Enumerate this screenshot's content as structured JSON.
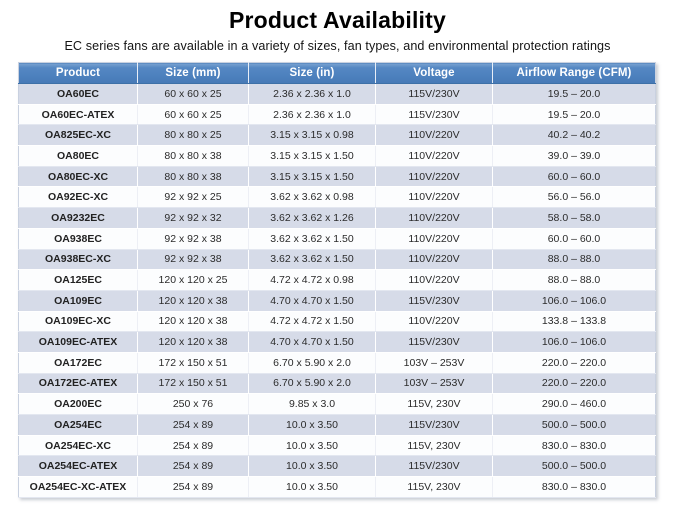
{
  "slide": {
    "title": "Product Availability",
    "subtitle": "EC series fans are available in a variety of sizes, fan types, and environmental protection ratings"
  },
  "table": {
    "headers": [
      "Product",
      "Size (mm)",
      "Size (in)",
      "Voltage",
      "Airflow Range (CFM)"
    ],
    "column_keys": [
      "product",
      "size_mm",
      "size_in",
      "voltage",
      "airflow_range_cfm"
    ],
    "rows": [
      [
        "OA60EC",
        "60 x 60 x 25",
        "2.36 x 2.36 x 1.0",
        "115V/230V",
        "19.5 – 20.0"
      ],
      [
        "OA60EC-ATEX",
        "60 x 60 x 25",
        "2.36 x 2.36 x 1.0",
        "115V/230V",
        "19.5 – 20.0"
      ],
      [
        "OA825EC-XC",
        "80 x 80 x 25",
        "3.15 x 3.15 x 0.98",
        "110V/220V",
        "40.2 – 40.2"
      ],
      [
        "OA80EC",
        "80 x 80 x 38",
        "3.15 x 3.15 x 1.50",
        "110V/220V",
        "39.0 – 39.0"
      ],
      [
        "OA80EC-XC",
        "80 x 80 x 38",
        "3.15 x 3.15 x 1.50",
        "110V/220V",
        "60.0 – 60.0"
      ],
      [
        "OA92EC-XC",
        "92 x 92 x 25",
        "3.62 x 3.62 x 0.98",
        "110V/220V",
        "56.0 – 56.0"
      ],
      [
        "OA9232EC",
        "92 x 92 x 32",
        "3.62 x 3.62 x 1.26",
        "110V/220V",
        "58.0 – 58.0"
      ],
      [
        "OA938EC",
        "92 x 92 x 38",
        "3.62 x 3.62 x 1.50",
        "110V/220V",
        "60.0 – 60.0"
      ],
      [
        "OA938EC-XC",
        "92 x 92 x 38",
        "3.62 x 3.62 x 1.50",
        "110V/220V",
        "88.0 – 88.0"
      ],
      [
        "OA125EC",
        "120 x 120 x 25",
        "4.72 x 4.72 x 0.98",
        "110V/220V",
        "88.0 – 88.0"
      ],
      [
        "OA109EC",
        "120 x 120 x 38",
        "4.70 x 4.70 x 1.50",
        "115V/230V",
        "106.0 – 106.0"
      ],
      [
        "OA109EC-XC",
        "120 x 120 x 38",
        "4.72 x 4.72 x 1.50",
        "110V/220V",
        "133.8 – 133.8"
      ],
      [
        "OA109EC-ATEX",
        "120 x 120 x 38",
        "4.70 x 4.70 x 1.50",
        "115V/230V",
        "106.0 – 106.0"
      ],
      [
        "OA172EC",
        "172 x 150 x 51",
        "6.70 x 5.90 x 2.0",
        "103V – 253V",
        "220.0 – 220.0"
      ],
      [
        "OA172EC-ATEX",
        "172 x 150 x 51",
        "6.70 x 5.90 x 2.0",
        "103V – 253V",
        "220.0 – 220.0"
      ],
      [
        "OA200EC",
        "250 x 76",
        "9.85 x 3.0",
        "115V, 230V",
        "290.0 – 460.0"
      ],
      [
        "OA254EC",
        "254 x 89",
        "10.0 x 3.50",
        "115V/230V",
        "500.0 – 500.0"
      ],
      [
        "OA254EC-XC",
        "254 x 89",
        "10.0 x 3.50",
        "115V, 230V",
        "830.0 – 830.0"
      ],
      [
        "OA254EC-ATEX",
        "254 x 89",
        "10.0 x 3.50",
        "115V/230V",
        "500.0 – 500.0"
      ],
      [
        "OA254EC-XC-ATEX",
        "254 x 89",
        "10.0 x 3.50",
        "115V, 230V",
        "830.0 – 830.0"
      ]
    ]
  },
  "colors": {
    "header_bg": "#4C80BD",
    "header_text": "#FFFFFF",
    "row_shaded": "#D6DBE8",
    "row_light": "#FCFDFE",
    "cell_text": "#2B2B2B",
    "table_border": "#C9D1E0"
  }
}
